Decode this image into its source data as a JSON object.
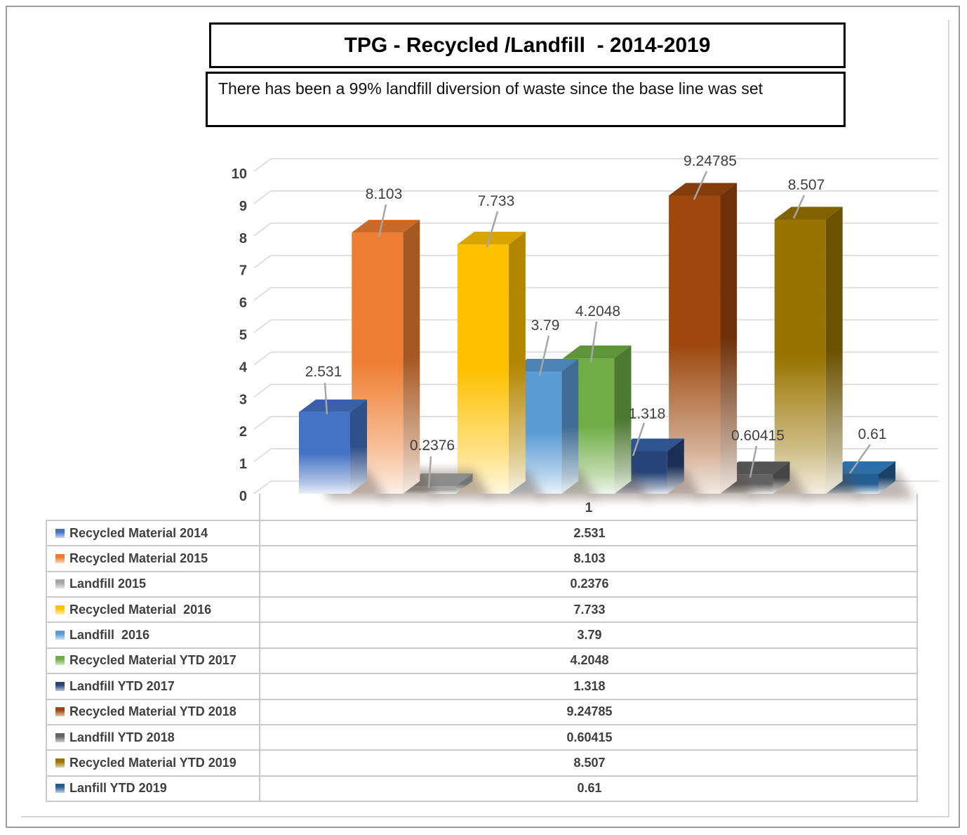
{
  "page": {
    "border_color": "#9c9c9c",
    "background": "#ffffff"
  },
  "header": {
    "title": "TPG - Recycled /Landfill  - 2014-2019",
    "subtitle": "There has been a 99% landfill diversion of waste since the base line was set"
  },
  "axis": {
    "yticks": [
      "0",
      "1",
      "2",
      "3",
      "4",
      "5",
      "6",
      "7",
      "8",
      "9",
      "10"
    ],
    "ymin": 0,
    "ymax": 10
  },
  "table": {
    "column_header": "1"
  },
  "chart_data": {
    "type": "bar",
    "projection": "3d",
    "title": "TPG - Recycled /Landfill  - 2014-2019",
    "categories": [
      "1"
    ],
    "ylim": [
      0,
      10
    ],
    "ytick_step": 1,
    "grid": true,
    "legend_position": "data-table-left",
    "data_labels": true,
    "series": [
      {
        "name": "Recycled Material 2014",
        "value": "2.531",
        "color": "#4472C4"
      },
      {
        "name": "Recycled Material 2015",
        "value": "8.103",
        "color": "#ED7D31"
      },
      {
        "name": "Landfill 2015",
        "value": "0.2376",
        "color": "#A5A5A5"
      },
      {
        "name": "Recycled Material  2016",
        "value": "7.733",
        "color": "#FFC000"
      },
      {
        "name": "Landfill  2016",
        "value": "3.79",
        "color": "#5B9BD5"
      },
      {
        "name": "Recycled Material YTD 2017",
        "value": "4.2048",
        "color": "#70AD47"
      },
      {
        "name": "Landfill YTD 2017",
        "value": "1.318",
        "color": "#264478"
      },
      {
        "name": "Recycled Material YTD 2018",
        "value": "9.24785",
        "color": "#9E480E"
      },
      {
        "name": "Landfill YTD 2018",
        "value": "0.60415",
        "color": "#636363"
      },
      {
        "name": "Recycled Material YTD 2019",
        "value": "8.507",
        "color": "#997300"
      },
      {
        "name": "Lanfill YTD 2019",
        "value": "0.61",
        "color": "#255E91"
      }
    ]
  }
}
